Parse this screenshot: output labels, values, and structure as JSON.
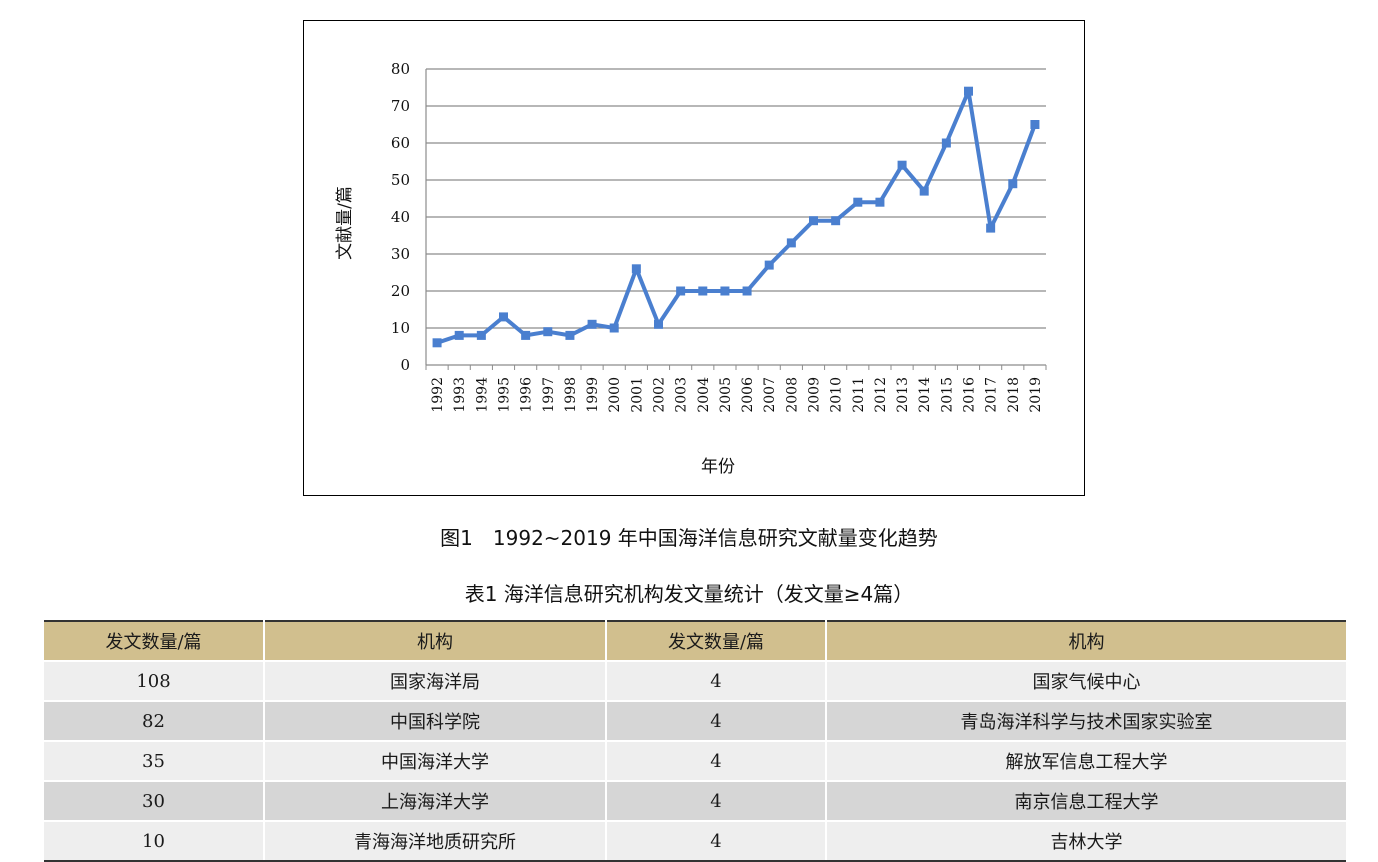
{
  "chart_data": {
    "type": "line",
    "title": "",
    "xlabel": "年份",
    "ylabel": "文献量/篇",
    "ylim": [
      0,
      80
    ],
    "yticks": [
      0,
      10,
      20,
      30,
      40,
      50,
      60,
      70,
      80
    ],
    "grid": true,
    "legend": "none",
    "line_color": "#4a7fcf",
    "categories": [
      "1992",
      "1993",
      "1994",
      "1995",
      "1996",
      "1997",
      "1998",
      "1999",
      "2000",
      "2001",
      "2002",
      "2003",
      "2004",
      "2005",
      "2006",
      "2007",
      "2008",
      "2009",
      "2010",
      "2011",
      "2012",
      "2013",
      "2014",
      "2015",
      "2016",
      "2017",
      "2018",
      "2019"
    ],
    "series": [
      {
        "values": [
          6,
          8,
          8,
          13,
          8,
          9,
          8,
          11,
          10,
          26,
          11,
          20,
          20,
          20,
          20,
          27,
          33,
          39,
          39,
          44,
          44,
          54,
          47,
          60,
          74,
          37,
          49,
          65
        ]
      }
    ]
  },
  "figure_caption": "图1　1992~2019 年中国海洋信息研究文献量变化趋势",
  "table_caption": "表1 海洋信息研究机构发文量统计（发文量≥4篇）",
  "table": {
    "headers": [
      "发文数量/篇",
      "机构",
      "发文数量/篇",
      "机构"
    ],
    "rows": [
      [
        "108",
        "国家海洋局",
        "4",
        "国家气候中心"
      ],
      [
        "82",
        "中国科学院",
        "4",
        "青岛海洋科学与技术国家实验室"
      ],
      [
        "35",
        "中国海洋大学",
        "4",
        "解放军信息工程大学"
      ],
      [
        "30",
        "上海海洋大学",
        "4",
        "南京信息工程大学"
      ],
      [
        "10",
        "青海海洋地质研究所",
        "4",
        "吉林大学"
      ]
    ]
  },
  "colors": {
    "header_bg": "#d1bf8e",
    "row_light": "#eeeeee",
    "row_dark": "#d6d6d6"
  }
}
